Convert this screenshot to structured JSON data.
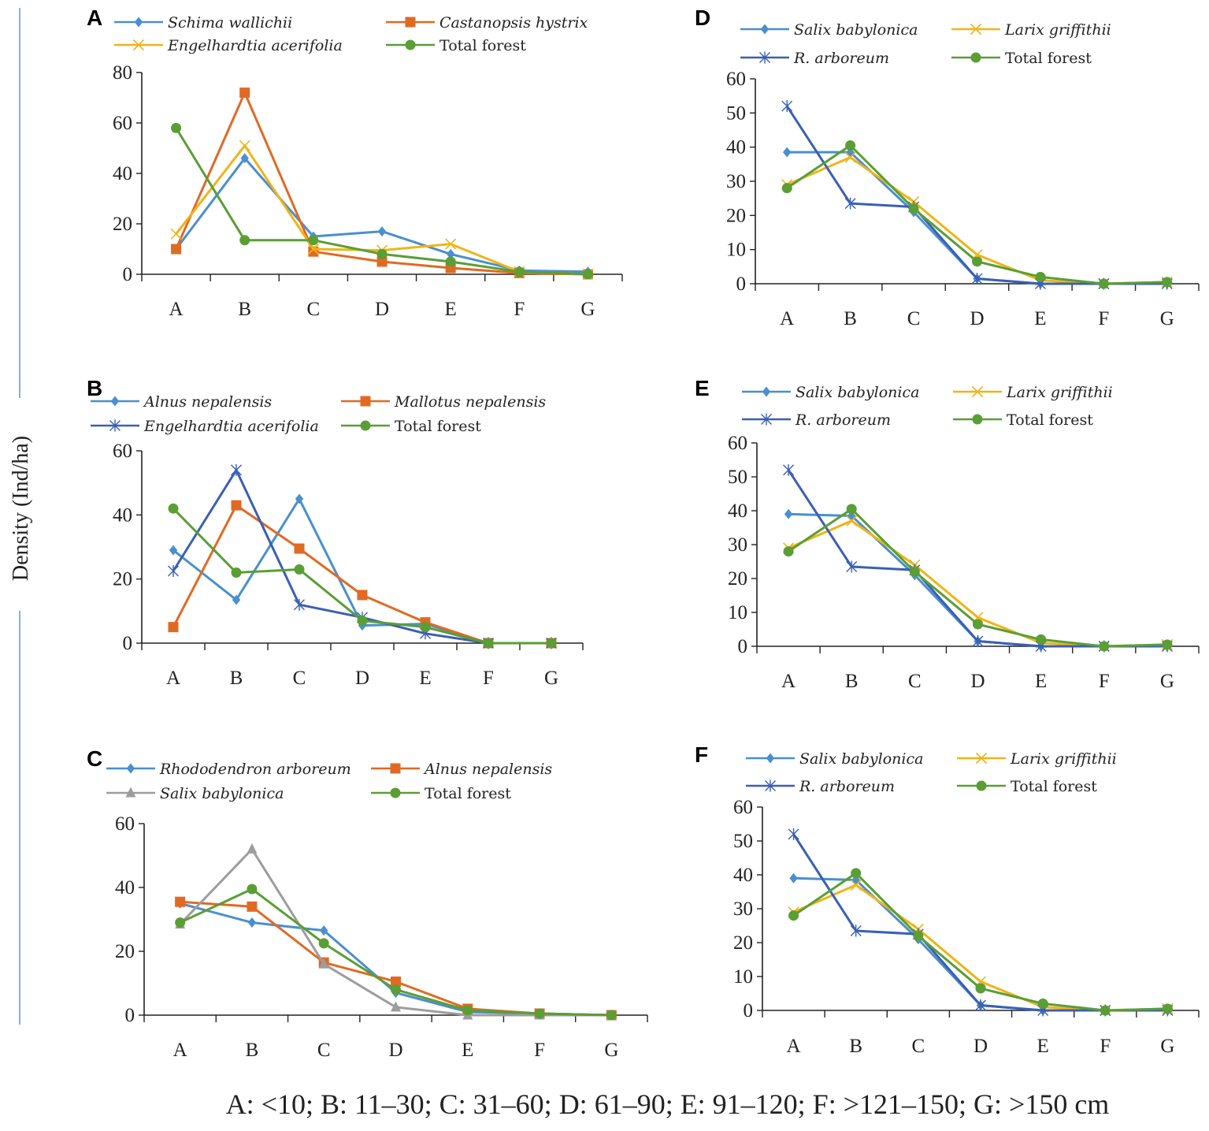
{
  "figure": {
    "y_axis_label": "Density (Ind/ha)",
    "footer_caption": "A: <10; B: 11–30; C: 31–60; D: 61–90; E: 91–120; F: >121–150; G: >150 cm"
  },
  "colors": {
    "light_blue": "#4a8fcf",
    "orange": "#e06a24",
    "gold": "#f0b418",
    "green": "#5a9e35",
    "dark_blue": "#3a5fb5",
    "gray": "#9d9d9d"
  },
  "chart_data": [
    {
      "panel": "A",
      "type": "line",
      "title": "A",
      "xlabel": "",
      "ylabel": "Density (Ind/ha)",
      "categories": [
        "A",
        "B",
        "C",
        "D",
        "E",
        "F",
        "G"
      ],
      "ylim": [
        0,
        80
      ],
      "yticks": [
        0,
        20,
        40,
        60,
        80
      ],
      "grid": false,
      "legend": "top",
      "series": [
        {
          "name": "Schima wallichii",
          "italic": true,
          "marker": "diamond",
          "color": "#4a8fcf",
          "values": [
            10,
            46,
            15,
            17,
            8,
            1.5,
            1
          ]
        },
        {
          "name": "Castanopsis hystrix",
          "italic": true,
          "marker": "square",
          "color": "#e06a24",
          "values": [
            10,
            72,
            9,
            5,
            2.5,
            0.5,
            0
          ]
        },
        {
          "name": "Engelhardtia acerifolia",
          "italic": true,
          "marker": "x",
          "color": "#f0b418",
          "values": [
            16,
            51,
            10,
            9.5,
            12,
            1,
            0
          ]
        },
        {
          "name": "Total forest",
          "italic": false,
          "marker": "circle",
          "color": "#5a9e35",
          "values": [
            58,
            13.5,
            13.5,
            8,
            5,
            1,
            0
          ]
        }
      ]
    },
    {
      "panel": "B",
      "type": "line",
      "title": "B",
      "xlabel": "",
      "ylabel": "Density (Ind/ha)",
      "categories": [
        "A",
        "B",
        "C",
        "D",
        "E",
        "F",
        "G"
      ],
      "ylim": [
        0,
        60
      ],
      "yticks": [
        0,
        20,
        40,
        60
      ],
      "grid": false,
      "legend": "top",
      "series": [
        {
          "name": "Alnus nepalensis",
          "italic": true,
          "marker": "diamond",
          "color": "#4a8fcf",
          "values": [
            29,
            13.5,
            45,
            5.5,
            6,
            0,
            0
          ]
        },
        {
          "name": "Mallotus nepalensis",
          "italic": true,
          "marker": "square",
          "color": "#e06a24",
          "values": [
            5,
            43,
            29.5,
            15,
            6.5,
            0,
            0
          ]
        },
        {
          "name": "Engelhardtia acerifolia",
          "italic": true,
          "marker": "asterisk",
          "color": "#3a5fb5",
          "values": [
            22.5,
            54,
            12,
            8,
            3,
            0,
            0
          ]
        },
        {
          "name": "Total forest",
          "italic": false,
          "marker": "circle",
          "color": "#5a9e35",
          "values": [
            42,
            22,
            23,
            7,
            5,
            0,
            0
          ]
        }
      ]
    },
    {
      "panel": "C",
      "type": "line",
      "title": "C",
      "xlabel": "",
      "ylabel": "Density (Ind/ha)",
      "categories": [
        "A",
        "B",
        "C",
        "D",
        "E",
        "F",
        "G"
      ],
      "ylim": [
        0,
        60
      ],
      "yticks": [
        0,
        20,
        40,
        60
      ],
      "grid": false,
      "legend": "top",
      "series": [
        {
          "name": "Rhododendron arboreum",
          "italic": true,
          "marker": "diamond",
          "color": "#4a8fcf",
          "values": [
            35,
            29,
            26.5,
            7,
            1,
            0.5,
            0
          ]
        },
        {
          "name": "Alnus nepalensis",
          "italic": true,
          "marker": "square",
          "color": "#e06a24",
          "values": [
            35.5,
            34,
            16.5,
            10.5,
            2,
            0.5,
            0
          ]
        },
        {
          "name": "Salix babylonica",
          "italic": true,
          "marker": "triangle",
          "color": "#9d9d9d",
          "values": [
            28.5,
            52,
            16,
            2.5,
            0,
            0,
            0
          ]
        },
        {
          "name": "Total forest",
          "italic": false,
          "marker": "circle",
          "color": "#5a9e35",
          "values": [
            29,
            39.5,
            22.5,
            8,
            1.5,
            0.5,
            0
          ]
        }
      ]
    },
    {
      "panel": "D",
      "type": "line",
      "title": "D",
      "xlabel": "",
      "ylabel": "Density (Ind/ha)",
      "categories": [
        "A",
        "B",
        "C",
        "D",
        "E",
        "F",
        "G"
      ],
      "ylim": [
        0,
        60
      ],
      "yticks": [
        0,
        10,
        20,
        30,
        40,
        50,
        60
      ],
      "grid": false,
      "legend": "top",
      "series": [
        {
          "name": "Salix babylonica",
          "italic": true,
          "marker": "diamond",
          "color": "#4a8fcf",
          "values": [
            38.5,
            38.5,
            21,
            1.5,
            0,
            0,
            0
          ]
        },
        {
          "name": "Larix griffithii",
          "italic": true,
          "marker": "x",
          "color": "#f0b418",
          "values": [
            29,
            37,
            24,
            8.5,
            1,
            0,
            0.5
          ]
        },
        {
          "name": "R. arboreum",
          "italic": true,
          "marker": "asterisk",
          "color": "#3a5fb5",
          "values": [
            52,
            23.5,
            22.5,
            1.5,
            0,
            0,
            0
          ]
        },
        {
          "name": "Total forest",
          "italic": false,
          "marker": "circle",
          "color": "#5a9e35",
          "values": [
            28,
            40.5,
            22,
            6.5,
            2,
            0,
            0.5
          ]
        }
      ]
    },
    {
      "panel": "E",
      "type": "line",
      "title": "E",
      "xlabel": "",
      "ylabel": "Density (Ind/ha)",
      "categories": [
        "A",
        "B",
        "C",
        "D",
        "E",
        "F",
        "G"
      ],
      "ylim": [
        0,
        60
      ],
      "yticks": [
        0,
        10,
        20,
        30,
        40,
        50,
        60
      ],
      "grid": false,
      "legend": "top",
      "series": [
        {
          "name": "Salix babylonica",
          "italic": true,
          "marker": "diamond",
          "color": "#4a8fcf",
          "values": [
            39,
            38.5,
            21,
            1.5,
            0,
            0,
            0
          ]
        },
        {
          "name": "Larix griffithii",
          "italic": true,
          "marker": "x",
          "color": "#f0b418",
          "values": [
            29,
            37,
            24,
            8.5,
            1,
            0,
            0.5
          ]
        },
        {
          "name": "R. arboreum",
          "italic": true,
          "marker": "asterisk",
          "color": "#3a5fb5",
          "values": [
            52,
            23.5,
            22.5,
            1.5,
            0,
            0,
            0
          ]
        },
        {
          "name": "Total forest",
          "italic": false,
          "marker": "circle",
          "color": "#5a9e35",
          "values": [
            28,
            40.5,
            22,
            6.5,
            2,
            0,
            0.5
          ]
        }
      ]
    },
    {
      "panel": "F",
      "type": "line",
      "title": "F",
      "xlabel": "",
      "ylabel": "Density (Ind/ha)",
      "categories": [
        "A",
        "B",
        "C",
        "D",
        "E",
        "F",
        "G"
      ],
      "ylim": [
        0,
        60
      ],
      "yticks": [
        0,
        10,
        20,
        30,
        40,
        50,
        60
      ],
      "grid": false,
      "legend": "top",
      "series": [
        {
          "name": "Salix babylonica",
          "italic": true,
          "marker": "diamond",
          "color": "#4a8fcf",
          "values": [
            39,
            38.5,
            21,
            1.5,
            0,
            0,
            0
          ]
        },
        {
          "name": "Larix griffithii",
          "italic": true,
          "marker": "x",
          "color": "#f0b418",
          "values": [
            29,
            37,
            24,
            8.5,
            1,
            0,
            0.5
          ]
        },
        {
          "name": "R. arboreum",
          "italic": true,
          "marker": "asterisk",
          "color": "#3a5fb5",
          "values": [
            52,
            23.5,
            22.5,
            1.5,
            0,
            0,
            0
          ]
        },
        {
          "name": "Total forest",
          "italic": false,
          "marker": "circle",
          "color": "#5a9e35",
          "values": [
            28,
            40.5,
            22,
            6.5,
            2,
            0,
            0.5
          ]
        }
      ]
    }
  ]
}
